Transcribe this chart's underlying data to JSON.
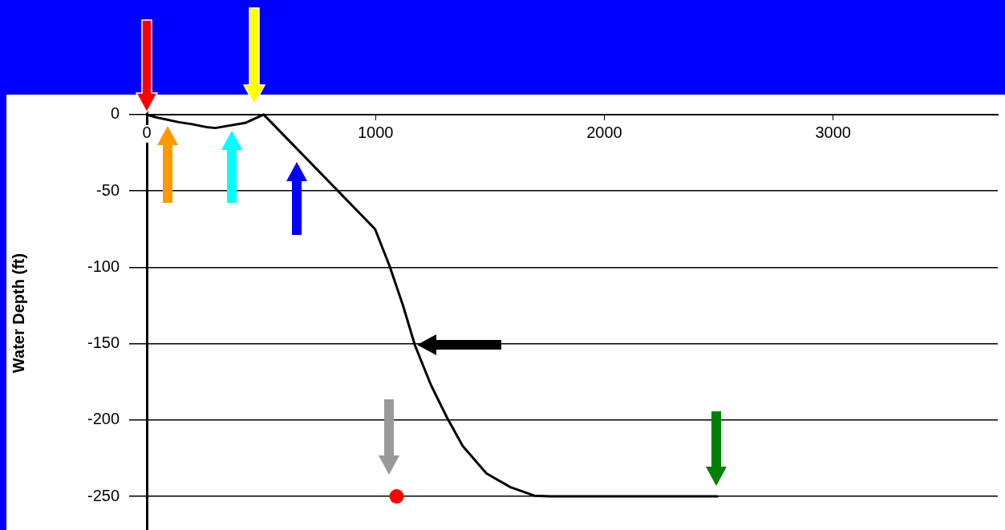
{
  "chart_data": {
    "type": "line",
    "ylabel": "Water Depth (ft)",
    "xlim": [
      0,
      3720
    ],
    "ylim": [
      -272,
      12
    ],
    "xticks": [
      0,
      1000,
      2000,
      3000
    ],
    "yticks": [
      0,
      -50,
      -100,
      -150,
      -200,
      -250
    ],
    "grid": "y",
    "legend": false,
    "series": [
      {
        "color": "#000000",
        "marker": "none",
        "x": [
          0,
          40,
          140,
          198,
          268,
          300,
          430,
          511,
          998,
          1061,
          1120,
          1172,
          1242,
          1311,
          1381,
          1485,
          1590,
          1694,
          1763,
          2494
        ],
        "values": [
          0,
          -1.8,
          -5,
          -6.3,
          -8.4,
          -8.8,
          -5.5,
          0,
          -75,
          -99,
          -125,
          -151,
          -177,
          -198,
          -217,
          -235,
          -244,
          -249.5,
          -250,
          -250
        ]
      },
      {
        "type": "scatter",
        "color": "#ff0000",
        "marker": "circle",
        "x": [
          1092
        ],
        "values": [
          -250
        ]
      }
    ]
  }
}
